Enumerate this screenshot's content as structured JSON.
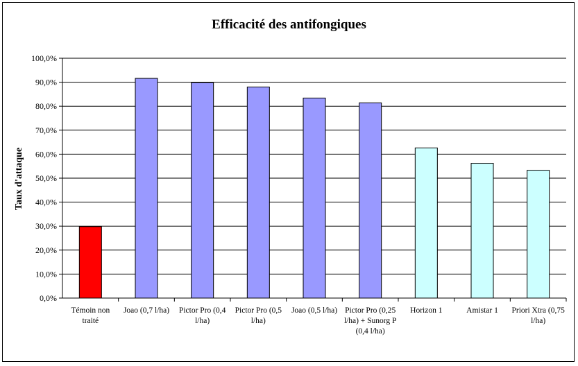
{
  "chart_data": {
    "type": "bar",
    "title": "Efficacité des antifongiques",
    "xlabel": "",
    "ylabel": "Taux d'attaque",
    "ylim": [
      0,
      100
    ],
    "y_ticks": [
      "0,0%",
      "10,0%",
      "20,0%",
      "30,0%",
      "40,0%",
      "50,0%",
      "60,0%",
      "70,0%",
      "80,0%",
      "90,0%",
      "100,0%"
    ],
    "grid": true,
    "legend": "none",
    "categories": [
      "Témoin non traité",
      "Joao (0,7 l/ha)",
      "Pictor Pro (0,4 l/ha)",
      "Pictor Pro (0,5 l/ha)",
      "Joao (0,5 l/ha)",
      "Pictor Pro (0,25 l/ha) + Sunorg P (0,4 l/ha)",
      "Horizon 1",
      "Amistar 1",
      "Priori Xtra (0,75 l/ha)"
    ],
    "values": [
      29.8,
      91.6,
      89.8,
      88.0,
      83.4,
      81.4,
      62.6,
      56.2,
      53.3
    ],
    "colors": [
      "#ff0000",
      "#9999ff",
      "#9999ff",
      "#9999ff",
      "#9999ff",
      "#9999ff",
      "#ccffff",
      "#ccffff",
      "#ccffff"
    ]
  }
}
